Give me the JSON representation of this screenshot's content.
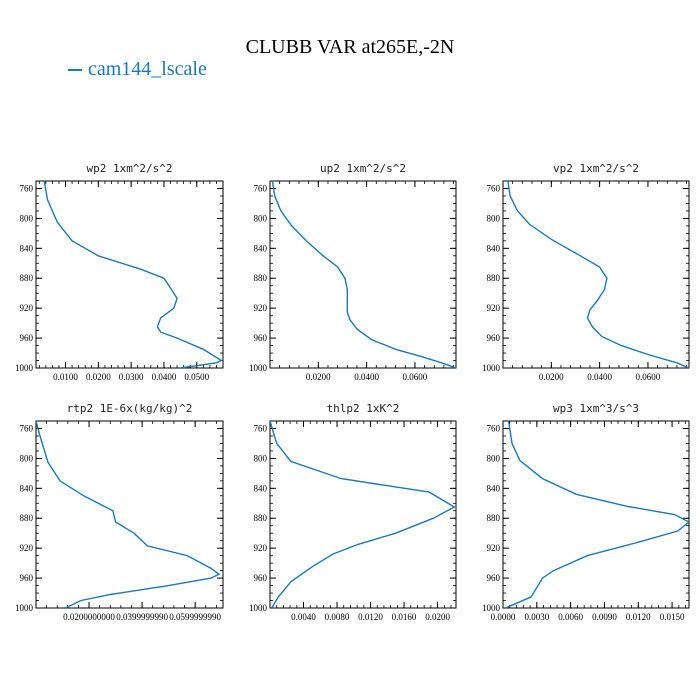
{
  "figure": {
    "title": "CLUBB VAR at265E,-2N",
    "legend_label": "cam144_lscale",
    "line_color": "#1f77b4"
  },
  "chart_data": [
    {
      "type": "line",
      "title": "wp2   1xm^2/s^2",
      "xlim": [
        0.001,
        0.058
      ],
      "ylim": [
        1000,
        750
      ],
      "xticks": [
        0.01,
        0.02,
        0.03,
        0.04,
        0.05
      ],
      "xticklabels": [
        "0.0100",
        "0.0200",
        "0.0300",
        "0.0400",
        "0.0500"
      ],
      "yticks": [
        760,
        800,
        840,
        880,
        920,
        960,
        1000
      ],
      "x": [
        0.0035,
        0.0045,
        0.0075,
        0.012,
        0.02,
        0.033,
        0.04,
        0.042,
        0.044,
        0.043,
        0.039,
        0.038,
        0.039,
        0.044,
        0.052,
        0.0575,
        0.056,
        0.045
      ],
      "y": [
        750,
        775,
        805,
        830,
        850,
        868,
        880,
        893,
        907,
        920,
        933,
        945,
        952,
        960,
        975,
        990,
        993,
        1000
      ]
    },
    {
      "type": "line",
      "title": "up2   1xm^2/s^2",
      "xlim": [
        0.0,
        0.077
      ],
      "ylim": [
        1000,
        750
      ],
      "xticks": [
        0.02,
        0.04,
        0.06
      ],
      "xticklabels": [
        "0.0200",
        "0.0400",
        "0.0600"
      ],
      "yticks": [
        760,
        800,
        840,
        880,
        920,
        960,
        1000
      ],
      "x": [
        0.001,
        0.002,
        0.0045,
        0.009,
        0.015,
        0.022,
        0.028,
        0.031,
        0.032,
        0.032,
        0.032,
        0.033,
        0.036,
        0.042,
        0.052,
        0.063,
        0.071,
        0.077
      ],
      "y": [
        750,
        770,
        790,
        810,
        830,
        850,
        865,
        880,
        895,
        910,
        925,
        935,
        948,
        962,
        975,
        985,
        993,
        1000
      ]
    },
    {
      "type": "line",
      "title": "vp2   1xm^2/s^2",
      "xlim": [
        0.0,
        0.077
      ],
      "ylim": [
        1000,
        750
      ],
      "xticks": [
        0.02,
        0.04,
        0.06
      ],
      "xticklabels": [
        "0.0200",
        "0.0400",
        "0.0600"
      ],
      "yticks": [
        760,
        800,
        840,
        880,
        920,
        960,
        1000
      ],
      "x": [
        0.002,
        0.003,
        0.006,
        0.011,
        0.02,
        0.032,
        0.04,
        0.043,
        0.042,
        0.039,
        0.036,
        0.035,
        0.037,
        0.041,
        0.049,
        0.06,
        0.072,
        0.077
      ],
      "y": [
        750,
        770,
        790,
        808,
        828,
        850,
        865,
        880,
        895,
        910,
        922,
        933,
        945,
        958,
        970,
        982,
        993,
        1000
      ]
    },
    {
      "type": "line",
      "title": "rtp2   1E-6x(kg/kg)^2",
      "xlim": [
        0.0,
        0.0705
      ],
      "ylim": [
        1000,
        750
      ],
      "xticks": [
        0.02,
        0.04,
        0.06
      ],
      "xticklabels": [
        "0.0200000000",
        "0.0399999990",
        "0.0599999990"
      ],
      "yticks": [
        760,
        800,
        840,
        880,
        920,
        960,
        1000
      ],
      "x": [
        0.0,
        0.0015,
        0.0045,
        0.009,
        0.018,
        0.029,
        0.03,
        0.037,
        0.042,
        0.057,
        0.066,
        0.069,
        0.066,
        0.05,
        0.028,
        0.017,
        0.011
      ],
      "y": [
        750,
        770,
        805,
        830,
        850,
        870,
        885,
        900,
        917,
        930,
        947,
        955,
        960,
        970,
        982,
        990,
        1000
      ]
    },
    {
      "type": "line",
      "title": "thlp2   1xK^2",
      "xlim": [
        0.0,
        0.0222
      ],
      "ylim": [
        1000,
        750
      ],
      "xticks": [
        0.004,
        0.008,
        0.012,
        0.016,
        0.02
      ],
      "xticklabels": [
        "0.0040",
        "0.0080",
        "0.0120",
        "0.0160",
        "0.0200"
      ],
      "yticks": [
        760,
        800,
        840,
        880,
        920,
        960,
        1000
      ],
      "x": [
        0.0,
        0.0008,
        0.0025,
        0.0085,
        0.019,
        0.022,
        0.0195,
        0.015,
        0.0105,
        0.0075,
        0.005,
        0.0025,
        0.001,
        0.0002
      ],
      "y": [
        750,
        780,
        804,
        827,
        845,
        865,
        880,
        900,
        915,
        928,
        945,
        965,
        985,
        1000
      ]
    },
    {
      "type": "line",
      "title": "wp3   1xm^3/s^3",
      "xlim": [
        0.0,
        0.0165
      ],
      "ylim": [
        1000,
        750
      ],
      "xticks": [
        0.0,
        0.003,
        0.006,
        0.009,
        0.012,
        0.015
      ],
      "xticklabels": [
        "0.0000",
        "0.0030",
        "0.0060",
        "0.0090",
        "0.0120",
        "0.0150"
      ],
      "yticks": [
        760,
        800,
        840,
        880,
        920,
        960,
        1000
      ],
      "x": [
        0.0005,
        0.0008,
        0.0015,
        0.0035,
        0.0065,
        0.011,
        0.0152,
        0.0165,
        0.0155,
        0.012,
        0.0075,
        0.0045,
        0.0035,
        0.0025,
        0.001,
        0.0002
      ],
      "y": [
        750,
        780,
        803,
        827,
        848,
        864,
        875,
        885,
        897,
        912,
        930,
        950,
        960,
        985,
        995,
        1000
      ]
    }
  ]
}
